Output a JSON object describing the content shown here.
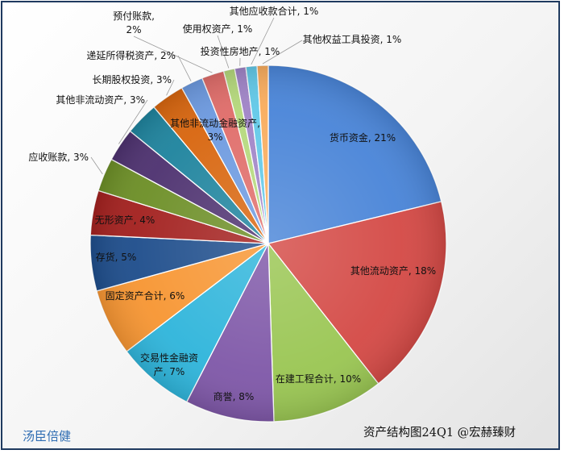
{
  "chart_data": {
    "type": "pie",
    "title": "",
    "start_angle_deg": 0,
    "direction": "clockwise",
    "slices": [
      {
        "label": "货币资金",
        "value": 21,
        "display": "货币资金, 21%",
        "color": "#4a85d8"
      },
      {
        "label": "其他流动资产",
        "value": 18,
        "display": "其他流动资产, 18%",
        "color": "#d44a46"
      },
      {
        "label": "在建工程合计",
        "value": 10,
        "display": "在建工程合计, 10%",
        "color": "#9ac653"
      },
      {
        "label": "商誉",
        "value": 8,
        "display": "商誉, 8%",
        "color": "#7f58a8"
      },
      {
        "label": "交易性金融资产",
        "value": 7,
        "display": [
          "交易性金融资",
          "产, 7%"
        ],
        "color": "#2fb5db"
      },
      {
        "label": "固定资产合计",
        "value": 6,
        "display": "固定资产合计, 6%",
        "color": "#f79633"
      },
      {
        "label": "存货",
        "value": 5,
        "display": "存货, 5%",
        "color": "#1f4e8c"
      },
      {
        "label": "无形资产",
        "value": 4,
        "display": "无形资产, 4%",
        "color": "#a3211f"
      },
      {
        "label": "应收账款",
        "value": 3,
        "display": "应收账款, 3%",
        "color": "#6d8f27"
      },
      {
        "label": "其他非流动资产",
        "value": 3,
        "display": "其他非流动资产, 3%",
        "color": "#4e3270"
      },
      {
        "label": "其他非流动金融资产",
        "value": 3,
        "display": [
          "其他非流动金融资产,",
          "3%"
        ],
        "color": "#1f849e"
      },
      {
        "label": "长期股权投资",
        "value": 3,
        "display": "长期股权投资, 3%",
        "color": "#d8660f"
      },
      {
        "label": "递延所得税资产",
        "value": 2,
        "display": "递延所得税资产, 2%",
        "color": "#6d9ae0"
      },
      {
        "label": "预付账款",
        "value": 2,
        "display": [
          "预付账款,",
          "2%"
        ],
        "color": "#e06d6a"
      },
      {
        "label": "使用权资产",
        "value": 1,
        "display": "使用权资产, 1%",
        "color": "#b5d97c"
      },
      {
        "label": "投资性房地产",
        "value": 1,
        "display": "投资性房地产, 1%",
        "color": "#a084c7"
      },
      {
        "label": "其他应收款合计",
        "value": 1,
        "display": "其他应收款合计, 1%",
        "color": "#62c9e8"
      },
      {
        "label": "其他权益工具投资",
        "value": 1,
        "display": "其他权益工具投资, 1%",
        "color": "#f9ad5e"
      }
    ]
  },
  "footer": {
    "author": "汤臣倍健",
    "caption": "资产结构图24Q1 @宏赫臻财"
  }
}
